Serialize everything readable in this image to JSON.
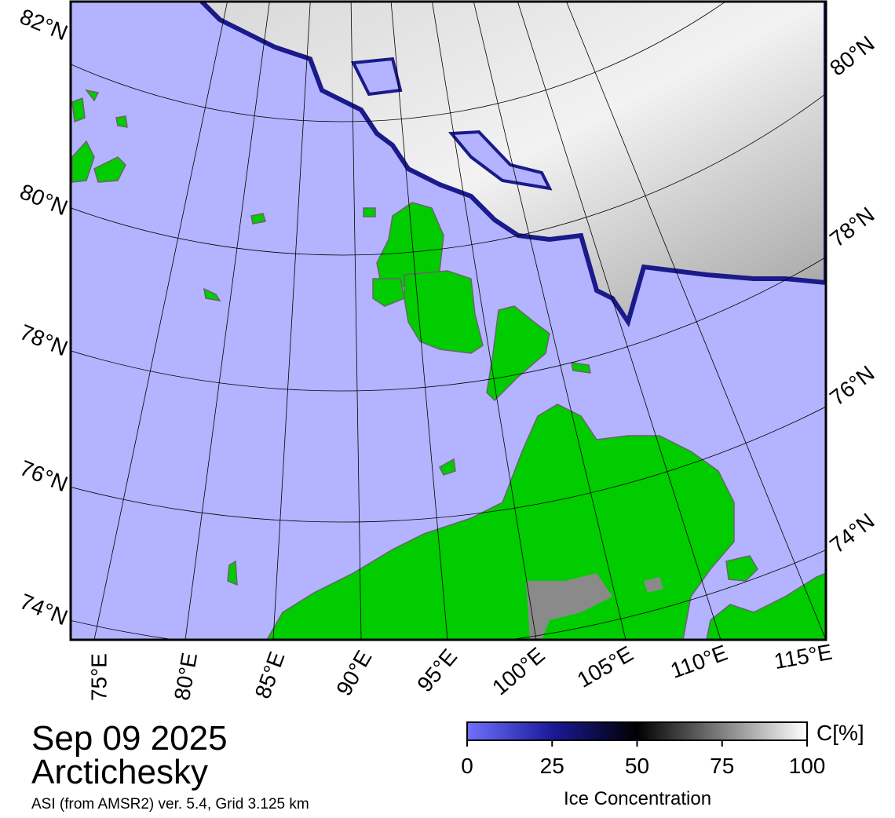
{
  "map": {
    "date": "Sep 09 2025",
    "region": "Arctichesky",
    "source": "ASI (from AMSR2) ver. 5.4,  Grid 3.125 km",
    "lat_labels_left": [
      "82°N",
      "80°N",
      "78°N",
      "76°N",
      "74°N"
    ],
    "lat_labels_right": [
      "80°N",
      "78°N",
      "76°N",
      "74°N"
    ],
    "lon_labels": [
      "75°E",
      "80°E",
      "85°E",
      "90°E",
      "95°E",
      "100°E",
      "105°E",
      "110°E",
      "115°E"
    ]
  },
  "colorbar": {
    "label": "Ice Concentration",
    "unit": "C[%]",
    "range": [
      0,
      100
    ],
    "ticks": [
      0,
      25,
      50,
      75,
      100
    ]
  }
}
